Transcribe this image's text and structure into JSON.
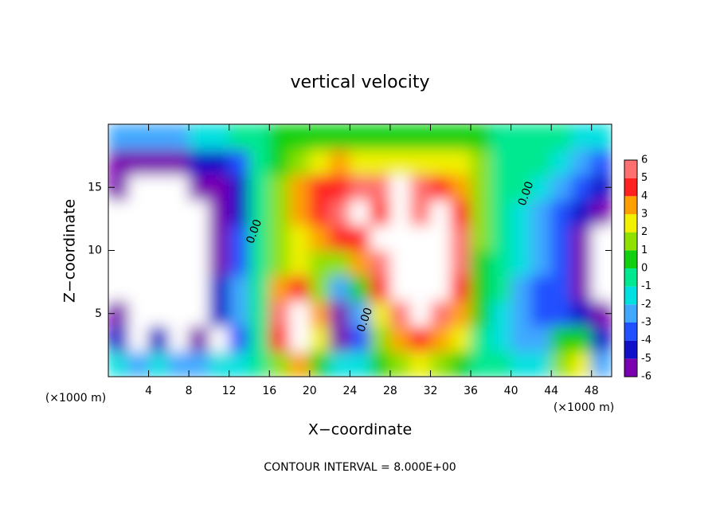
{
  "chart_data": {
    "type": "heatmap",
    "title": "vertical velocity",
    "xlabel": "X−coordinate",
    "ylabel": "Z−coordinate",
    "x_unit": "(×1000 m)",
    "footer": "CONTOUR INTERVAL = 8.000E+00",
    "xlim": [
      0,
      50
    ],
    "ylim": [
      0,
      20
    ],
    "xticks": [
      4,
      8,
      12,
      16,
      20,
      24,
      28,
      32,
      36,
      40,
      44,
      48
    ],
    "yticks": [
      5,
      10,
      15
    ],
    "x": [
      1,
      3,
      5,
      7,
      9,
      11,
      13,
      15,
      17,
      19,
      21,
      23,
      25,
      27,
      29,
      31,
      33,
      35,
      37,
      39,
      41,
      43,
      45,
      47,
      49
    ],
    "y": [
      1,
      3,
      5,
      7,
      9,
      11,
      13,
      15,
      17,
      19
    ],
    "z_values": [
      [
        -1,
        -2,
        -1,
        -2,
        -2,
        -1,
        -1,
        0,
        2,
        4,
        1,
        -1,
        -1,
        1,
        2,
        3,
        2,
        1,
        0,
        0,
        -1,
        -1,
        2,
        3,
        -2
      ],
      [
        -4,
        -7,
        -4,
        -7,
        -5,
        -7,
        -3,
        0,
        5,
        8,
        3,
        -5,
        -3,
        2,
        4,
        5,
        4,
        3,
        0,
        -1,
        -2,
        -2,
        1,
        1,
        -4
      ],
      [
        -6,
        -8,
        -7,
        -8,
        -8,
        -4,
        -2,
        0,
        6,
        8,
        4,
        -5,
        -2,
        3,
        6,
        7,
        6,
        4,
        1,
        -1,
        -2,
        -3,
        -3,
        -4,
        -5
      ],
      [
        -7,
        -8,
        -8,
        -8,
        -7,
        -4,
        -2,
        0,
        4,
        5,
        2,
        -2,
        1,
        5,
        8,
        8,
        7,
        5,
        1,
        0,
        -2,
        -3,
        -3,
        -5,
        -8
      ],
      [
        -7,
        -8,
        -9,
        -9,
        -7,
        -5,
        -3,
        0,
        2,
        3,
        2,
        2,
        4,
        6,
        8,
        8,
        8,
        6,
        1,
        0,
        -1,
        -2,
        -3,
        -5,
        -8
      ],
      [
        -7,
        -9,
        -9,
        -9,
        -7,
        -5,
        -3,
        0,
        2,
        3,
        4,
        5,
        5,
        7,
        9,
        8,
        9,
        6,
        2,
        0,
        -1,
        -2,
        -3,
        -5,
        -7
      ],
      [
        -7,
        -8,
        -9,
        -8,
        -7,
        -5,
        -4,
        0,
        2,
        4,
        5,
        6,
        7,
        5,
        9,
        6,
        8,
        5,
        2,
        0,
        -1,
        -2,
        -3,
        -4,
        -5
      ],
      [
        -6,
        -7,
        -7,
        -7,
        -6,
        -5,
        -4,
        0,
        2,
        4,
        5,
        5,
        6,
        6,
        8,
        6,
        5,
        4,
        2,
        0,
        0,
        -1,
        -2,
        -3,
        -4
      ],
      [
        -5,
        -5,
        -5,
        -5,
        -4,
        -4,
        -3,
        0,
        1,
        2,
        3,
        4,
        3,
        3,
        3,
        3,
        3,
        3,
        2,
        0,
        0,
        0,
        -1,
        -2,
        -3
      ],
      [
        -2,
        -2,
        -2,
        -2,
        -1,
        -1,
        0,
        0,
        1,
        1,
        1,
        1,
        1,
        1,
        1,
        1,
        1,
        1,
        1,
        0,
        0,
        0,
        0,
        -1,
        -1
      ]
    ],
    "levels": [
      -6,
      -5,
      -4,
      -3,
      -2,
      -1,
      0,
      1,
      2,
      3,
      4,
      5,
      6
    ],
    "colors": [
      "#7a00b0",
      "#1010c8",
      "#2050ff",
      "#40a8ff",
      "#00e0e0",
      "#00e890",
      "#10d010",
      "#90e000",
      "#f0f000",
      "#ffa000",
      "#ff2020",
      "#ff7070"
    ],
    "out_of_range_color": "#ffffff",
    "annotations": [
      {
        "text": "0.00",
        "x": 14.5,
        "y": 11.5
      },
      {
        "text": "0.00",
        "x": 25.5,
        "y": 4.5
      },
      {
        "text": "0.00",
        "x": 41.5,
        "y": 14.5
      }
    ]
  }
}
